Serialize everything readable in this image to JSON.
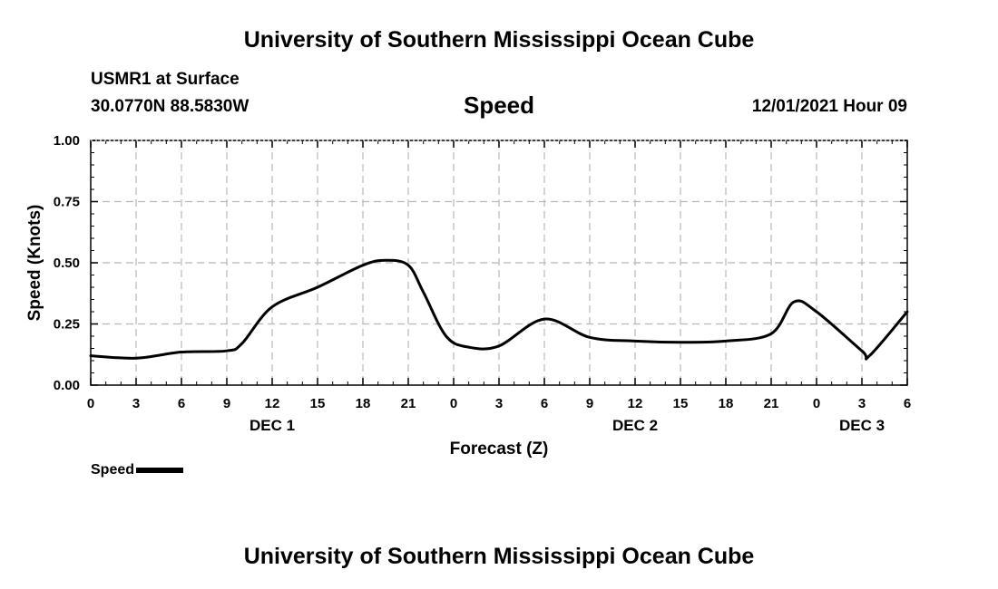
{
  "header": {
    "title": "University of Southern Mississippi Ocean Cube",
    "station": "USMR1 at Surface",
    "coords": "30.0770N  88.5830W",
    "timestamp": "12/01/2021 Hour 09"
  },
  "footer": {
    "title": "University of Southern Mississippi Ocean Cube"
  },
  "legend": {
    "label": "Speed",
    "color": "#000000"
  },
  "chart_data": {
    "type": "line",
    "title": "Speed",
    "xlabel": "Forecast (Z)",
    "ylabel": "Speed (Knots)",
    "xlim": [
      0,
      54
    ],
    "ylim": [
      0,
      1
    ],
    "grid": true,
    "x_tick_values": [
      0,
      3,
      6,
      9,
      12,
      15,
      18,
      21,
      24,
      27,
      30,
      33,
      36,
      39,
      42,
      45,
      48,
      51,
      54
    ],
    "x_tick_labels": [
      "0",
      "3",
      "6",
      "9",
      "12",
      "15",
      "18",
      "21",
      "0",
      "3",
      "6",
      "9",
      "12",
      "15",
      "18",
      "21",
      "0",
      "3",
      "6"
    ],
    "y_tick_values": [
      0,
      0.25,
      0.5,
      0.75,
      1.0
    ],
    "y_tick_labels": [
      "0.00",
      "0.25",
      "0.50",
      "0.75",
      "1.00"
    ],
    "day_labels": [
      {
        "x": 12,
        "label": "DEC 1"
      },
      {
        "x": 36,
        "label": "DEC 2"
      },
      {
        "x": 51,
        "label": "DEC 3"
      }
    ],
    "series": [
      {
        "name": "Speed",
        "color": "#000000",
        "x": [
          0,
          3,
          6,
          9,
          10,
          12,
          15,
          18,
          19.5,
          21,
          22,
          23.5,
          25,
          27,
          30,
          33,
          36,
          39,
          42,
          45,
          46.5,
          48,
          51,
          51.5,
          54
        ],
        "y": [
          0.12,
          0.11,
          0.135,
          0.14,
          0.17,
          0.32,
          0.4,
          0.49,
          0.51,
          0.49,
          0.38,
          0.2,
          0.155,
          0.16,
          0.27,
          0.195,
          0.18,
          0.175,
          0.18,
          0.21,
          0.34,
          0.3,
          0.14,
          0.12,
          0.3
        ]
      }
    ]
  }
}
